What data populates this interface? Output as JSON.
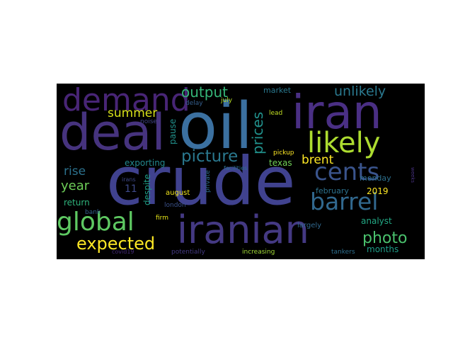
{
  "words": [
    {
      "id": "oil",
      "text": "oil",
      "color": "#3b70a0"
    },
    {
      "id": "crude",
      "text": "crude",
      "color": "#40428f"
    },
    {
      "id": "deal",
      "text": "deal",
      "color": "#46337e"
    },
    {
      "id": "iran",
      "text": "iran",
      "color": "#4a2f84"
    },
    {
      "id": "iranian",
      "text": "iranian",
      "color": "#443983"
    },
    {
      "id": "demand",
      "text": "demand",
      "color": "#482576"
    },
    {
      "id": "likely",
      "text": "likely",
      "color": "#addc30"
    },
    {
      "id": "cents",
      "text": "cents",
      "color": "#3a548c"
    },
    {
      "id": "barrel",
      "text": "barrel",
      "color": "#31688e"
    },
    {
      "id": "global",
      "text": "global",
      "color": "#5ec962"
    },
    {
      "id": "expected",
      "text": "expected",
      "color": "#fde725"
    },
    {
      "id": "picture",
      "text": "picture",
      "color": "#2a788e"
    },
    {
      "id": "output",
      "text": "output",
      "color": "#35b779"
    },
    {
      "id": "prices",
      "text": "prices",
      "color": "#21918c"
    },
    {
      "id": "unlikely",
      "text": "unlikely",
      "color": "#2a788e"
    },
    {
      "id": "summer",
      "text": "summer",
      "color": "#d8e219"
    },
    {
      "id": "photo",
      "text": "photo",
      "color": "#4ac16d"
    },
    {
      "id": "brent",
      "text": "brent",
      "color": "#fde725"
    },
    {
      "id": "rise",
      "text": "rise",
      "color": "#2c728e"
    },
    {
      "id": "year",
      "text": "year",
      "color": "#6ece58"
    },
    {
      "id": "exporting",
      "text": "exporting",
      "color": "#23888e"
    },
    {
      "id": "texas",
      "text": "texas",
      "color": "#70cf57"
    },
    {
      "id": "return",
      "text": "return",
      "color": "#2fb47c"
    },
    {
      "id": "despite",
      "text": "despite",
      "color": "#1fa187"
    },
    {
      "id": "pause",
      "text": "pause",
      "color": "#21918c"
    },
    {
      "id": "eleven",
      "text": "11",
      "color": "#3e4a89"
    },
    {
      "id": "n2019",
      "text": "2019",
      "color": "#fde725"
    },
    {
      "id": "analyst",
      "text": "analyst",
      "color": "#22a884"
    },
    {
      "id": "months",
      "text": "months",
      "color": "#1f9e89"
    },
    {
      "id": "monday",
      "text": "monday",
      "color": "#2d708e"
    },
    {
      "id": "february",
      "text": "february",
      "color": "#2c728e"
    },
    {
      "id": "market",
      "text": "market",
      "color": "#2a788e"
    },
    {
      "id": "july",
      "text": "july",
      "color": "#b5de2b"
    },
    {
      "id": "delay",
      "text": "delay",
      "color": "#355f8d"
    },
    {
      "id": "noise",
      "text": "noise",
      "color": "#414487"
    },
    {
      "id": "lead",
      "text": "lead",
      "color": "#c2df23"
    },
    {
      "id": "irans",
      "text": "irans",
      "color": "#3e4989"
    },
    {
      "id": "facilities",
      "text": "facilities",
      "color": "#2d708e"
    },
    {
      "id": "private",
      "text": "private",
      "color": "#2f6c8e"
    },
    {
      "id": "pickup",
      "text": "pickup",
      "color": "#fde725"
    },
    {
      "id": "august",
      "text": "august",
      "color": "#f1e51d"
    },
    {
      "id": "london",
      "text": "london",
      "color": "#3b518b"
    },
    {
      "id": "firm",
      "text": "firm",
      "color": "#e5e419"
    },
    {
      "id": "bank",
      "text": "bank",
      "color": "#34608d"
    },
    {
      "id": "largely",
      "text": "largely",
      "color": "#31688e"
    },
    {
      "id": "potentially",
      "text": "potentially",
      "color": "#443a83"
    },
    {
      "id": "increasing",
      "text": "increasing",
      "color": "#a2da37"
    },
    {
      "id": "covid19",
      "text": "covid19",
      "color": "#472c7a"
    },
    {
      "id": "tankers",
      "text": "tankers",
      "color": "#2e6f8e"
    },
    {
      "id": "weeks",
      "text": "weeks",
      "color": "#46307e"
    }
  ]
}
